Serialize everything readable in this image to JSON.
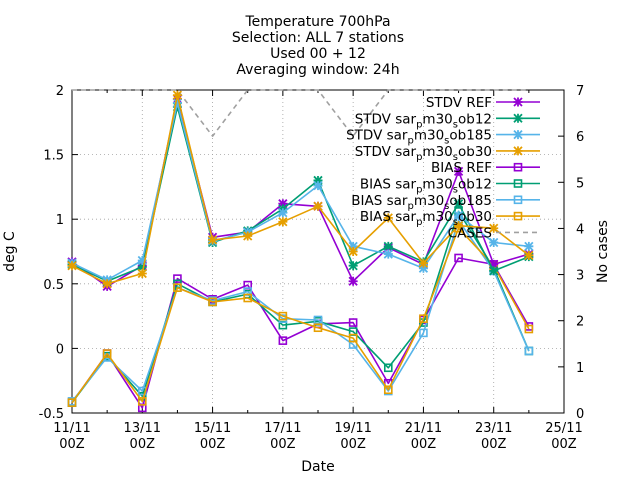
{
  "chart_data": {
    "type": "line",
    "title_lines": [
      "Temperature 700hPa",
      "Selection: ALL      7 stations",
      "Used 00 + 12",
      "Averaging window: 24h"
    ],
    "xlabel": "Date",
    "ylabel": "deg C",
    "y2label": "No cases",
    "xlim": [
      0,
      28
    ],
    "ylim": [
      -0.5,
      2
    ],
    "y2lim": [
      0,
      7
    ],
    "x_ticks": [
      {
        "x": 0,
        "l1": "11/11",
        "l2": "00Z"
      },
      {
        "x": 4,
        "l1": "13/11",
        "l2": "00Z"
      },
      {
        "x": 8,
        "l1": "15/11",
        "l2": "00Z"
      },
      {
        "x": 12,
        "l1": "17/11",
        "l2": "00Z"
      },
      {
        "x": 16,
        "l1": "19/11",
        "l2": "00Z"
      },
      {
        "x": 20,
        "l1": "21/11",
        "l2": "00Z"
      },
      {
        "x": 24,
        "l1": "23/11",
        "l2": "00Z"
      },
      {
        "x": 28,
        "l1": "25/11",
        "l2": "00Z"
      }
    ],
    "y_ticks": [
      -0.5,
      0,
      0.5,
      1,
      1.5,
      2
    ],
    "y_tick_labels": [
      "-0.5",
      "0",
      "0.5",
      "1",
      "1.5",
      "2"
    ],
    "y2_ticks": [
      0,
      1,
      2,
      3,
      4,
      5,
      6,
      7
    ],
    "y2_tick_labels": [
      "0",
      "1",
      "2",
      "3",
      "4",
      "5",
      "6",
      "7"
    ],
    "grid": true,
    "legend_position": "top-right",
    "x": [
      0,
      2,
      4,
      6,
      8,
      10,
      12,
      14,
      16,
      18,
      20,
      22,
      24,
      26
    ],
    "series": [
      {
        "name": "STDV REF",
        "color": "#9400d3",
        "marker": "x",
        "dashed": false,
        "values": [
          0.67,
          0.48,
          0.64,
          1.93,
          0.86,
          0.9,
          1.12,
          1.1,
          0.52,
          0.78,
          0.65,
          1.37,
          0.65,
          0.73
        ]
      },
      {
        "name": "STDV sar_pm30_sob12",
        "color": "#009e73",
        "marker": "x",
        "dashed": false,
        "values": [
          0.65,
          0.52,
          0.63,
          1.87,
          0.82,
          0.91,
          1.08,
          1.3,
          0.64,
          0.79,
          0.67,
          1.12,
          0.6,
          0.71
        ]
      },
      {
        "name": "STDV sar_pm30_sob185",
        "color": "#56b4e9",
        "marker": "x",
        "dashed": false,
        "values": [
          0.66,
          0.53,
          0.68,
          1.9,
          0.83,
          0.9,
          1.05,
          1.26,
          0.79,
          0.73,
          0.62,
          1.03,
          0.82,
          0.79
        ]
      },
      {
        "name": "STDV sar_pm30_sob30",
        "color": "#e69f00",
        "marker": "x",
        "dashed": false,
        "values": [
          0.64,
          0.5,
          0.58,
          1.96,
          0.84,
          0.87,
          0.98,
          1.1,
          0.75,
          1.01,
          0.66,
          0.95,
          0.93,
          0.72
        ]
      },
      {
        "name": "BIAS REF",
        "color": "#9400d3",
        "marker": "square",
        "dashed": false,
        "values": [
          -0.42,
          -0.04,
          -0.46,
          0.54,
          0.38,
          0.49,
          0.06,
          0.19,
          0.2,
          -0.27,
          0.22,
          0.7,
          0.65,
          0.17
        ]
      },
      {
        "name": "BIAS sar_pm30_sob12",
        "color": "#009e73",
        "marker": "square",
        "dashed": false,
        "values": [
          -0.42,
          -0.06,
          -0.37,
          0.5,
          0.36,
          0.42,
          0.18,
          0.21,
          0.13,
          -0.15,
          0.2,
          1.06,
          0.62,
          -0.02
        ]
      },
      {
        "name": "BIAS sar_pm30_sob185",
        "color": "#56b4e9",
        "marker": "square",
        "dashed": false,
        "values": [
          -0.41,
          -0.07,
          -0.33,
          0.47,
          0.37,
          0.44,
          0.23,
          0.22,
          0.03,
          -0.33,
          0.12,
          0.99,
          0.6,
          -0.02
        ]
      },
      {
        "name": "BIAS sar_pm30_sob30",
        "color": "#e69f00",
        "marker": "square",
        "dashed": false,
        "values": [
          -0.42,
          -0.04,
          -0.41,
          0.47,
          0.36,
          0.39,
          0.25,
          0.16,
          0.08,
          -0.32,
          0.23,
          0.93,
          0.64,
          0.15
        ]
      },
      {
        "name": "CASES",
        "color": "#a0a0a0",
        "marker": "none",
        "dashed": true,
        "axis": "y2",
        "values": [
          7,
          7,
          7,
          7,
          6,
          7,
          7,
          7,
          6,
          7,
          7,
          7,
          7,
          7
        ]
      }
    ]
  },
  "legend_labels": [
    {
      "base": "STDV REF",
      "sub": "",
      "tail": ""
    },
    {
      "base": "STDV sar",
      "sub": "p",
      "tail": "m30",
      "sub2": "s",
      "tail2": "ob12"
    },
    {
      "base": "STDV sar",
      "sub": "p",
      "tail": "m30",
      "sub2": "s",
      "tail2": "ob185"
    },
    {
      "base": "STDV sar",
      "sub": "p",
      "tail": "m30",
      "sub2": "s",
      "tail2": "ob30"
    },
    {
      "base": "BIAS REF",
      "sub": "",
      "tail": ""
    },
    {
      "base": "BIAS sar",
      "sub": "p",
      "tail": "m30",
      "sub2": "s",
      "tail2": "ob12"
    },
    {
      "base": "BIAS sar",
      "sub": "p",
      "tail": "m30",
      "sub2": "s",
      "tail2": "ob185"
    },
    {
      "base": "BIAS sar",
      "sub": "p",
      "tail": "m30",
      "sub2": "s",
      "tail2": "ob30"
    },
    {
      "base": "CASES",
      "sub": "",
      "tail": ""
    }
  ]
}
